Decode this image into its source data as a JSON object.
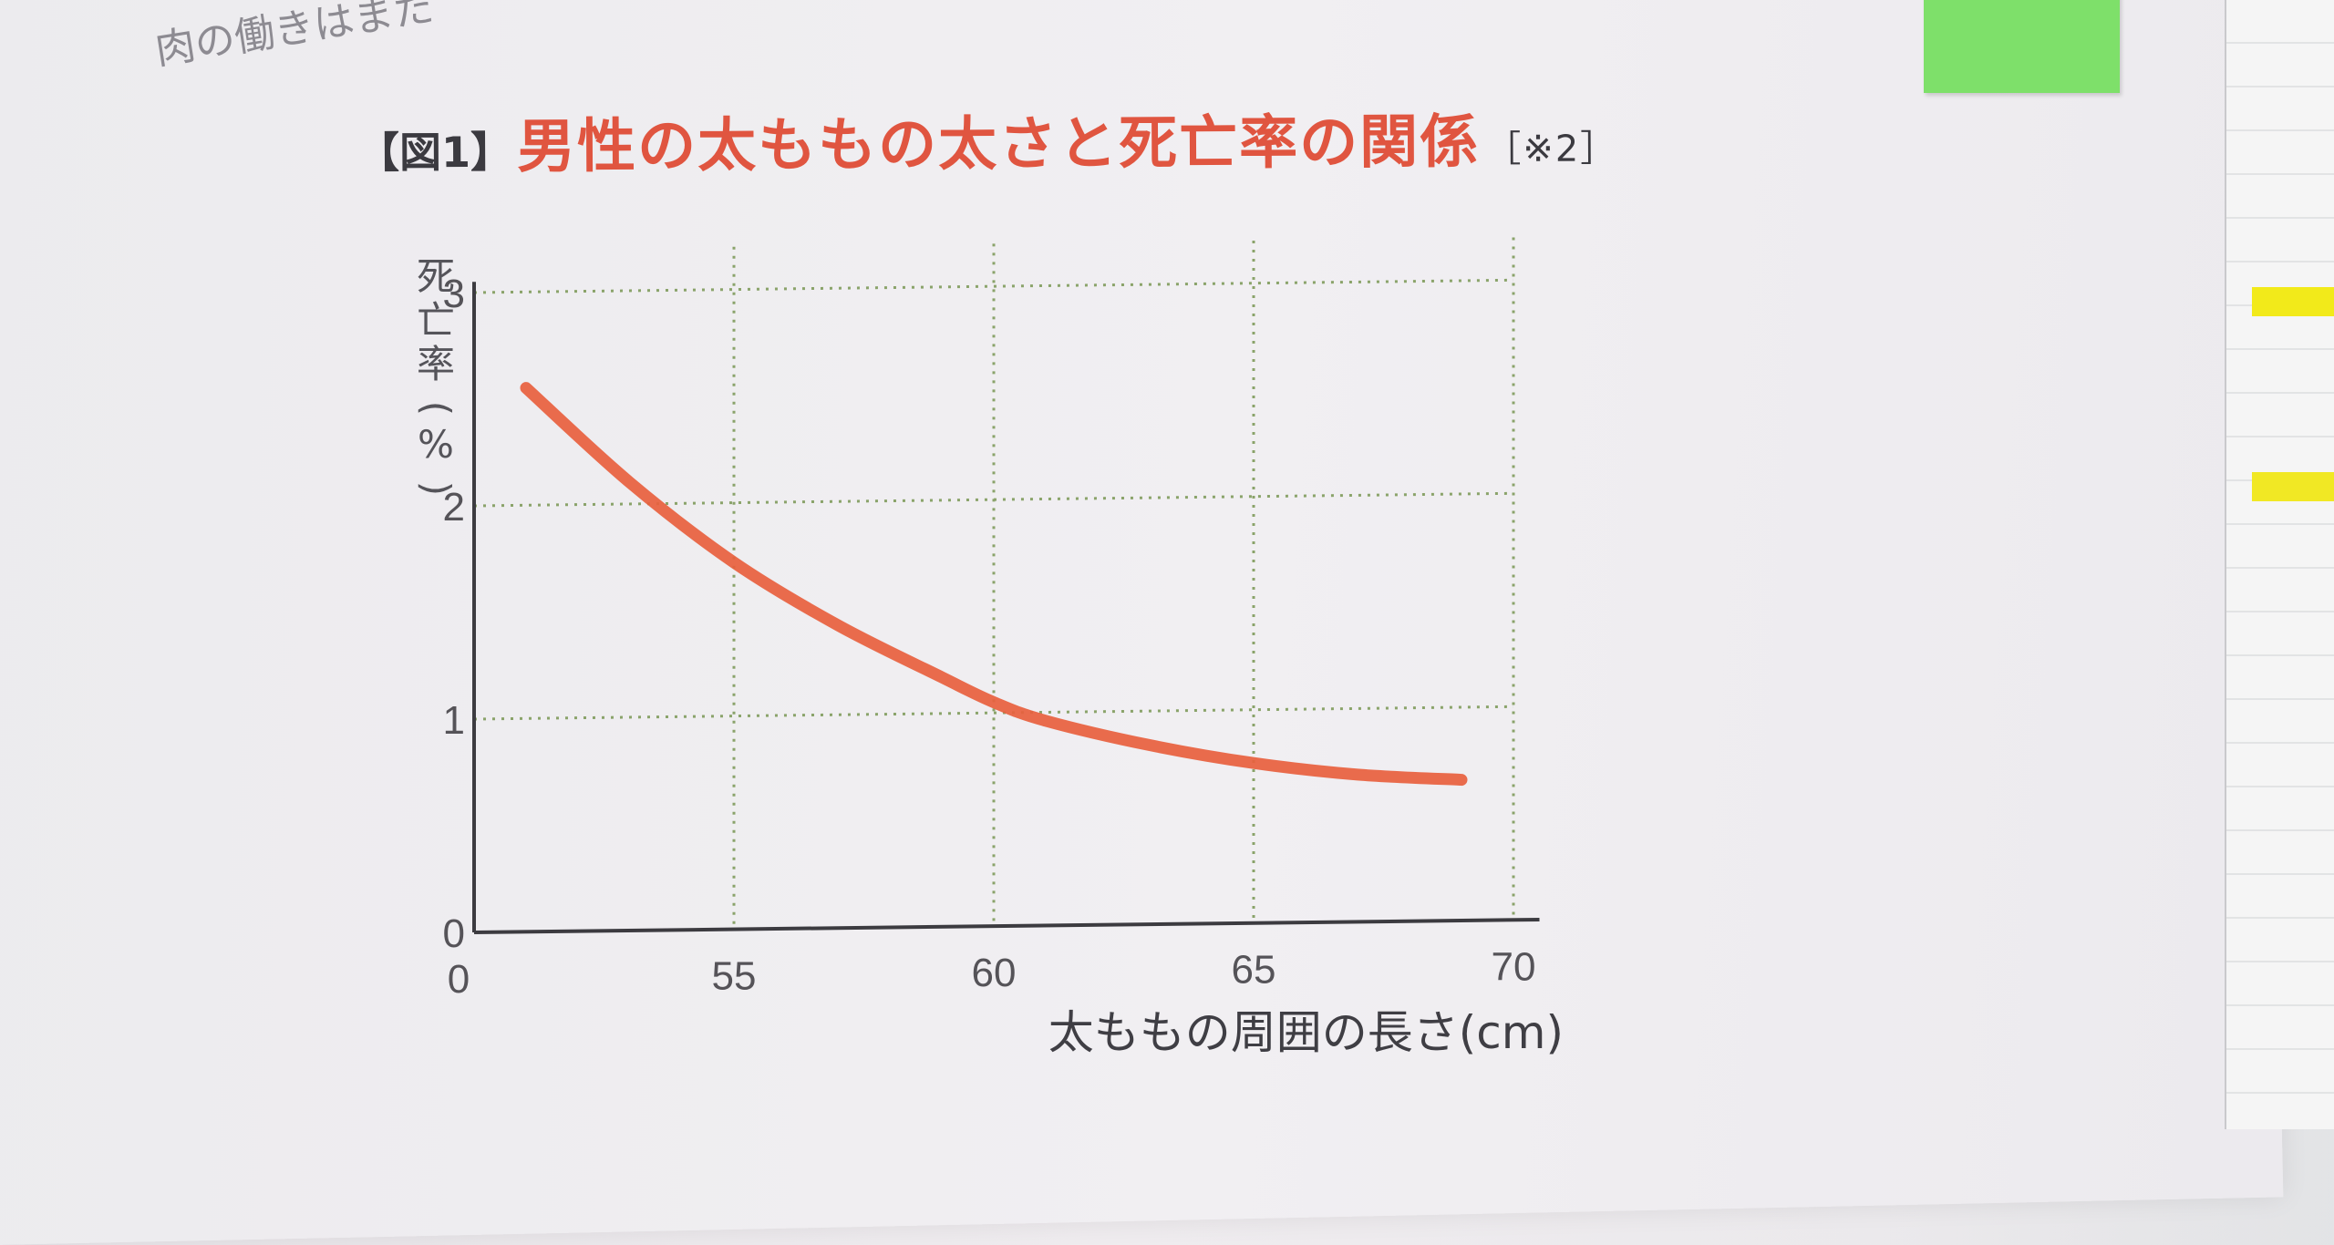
{
  "page": {
    "top_text": "肉の働きはまた"
  },
  "figure": {
    "number": "【図1】",
    "title": "男性の太ももの太さと死亡率の関係",
    "note": "［※2］"
  },
  "chart_data": {
    "type": "line",
    "title": "男性の太ももの太さと死亡率の関係",
    "xlabel": "太ももの周囲の長さ(cm)",
    "ylabel": "死亡率(%)",
    "xlim": [
      50,
      70
    ],
    "ylim": [
      0,
      3
    ],
    "x_ticks": [
      "0",
      "55",
      "60",
      "65",
      "70"
    ],
    "y_ticks": [
      "0",
      "1",
      "2",
      "3"
    ],
    "grid": true,
    "series": [
      {
        "color": "#e8603e",
        "x": [
          51,
          53,
          55,
          57,
          59,
          60,
          61,
          63,
          65,
          67,
          69
        ],
        "y": [
          2.55,
          2.1,
          1.72,
          1.42,
          1.17,
          1.05,
          0.96,
          0.84,
          0.75,
          0.69,
          0.66
        ]
      }
    ]
  }
}
